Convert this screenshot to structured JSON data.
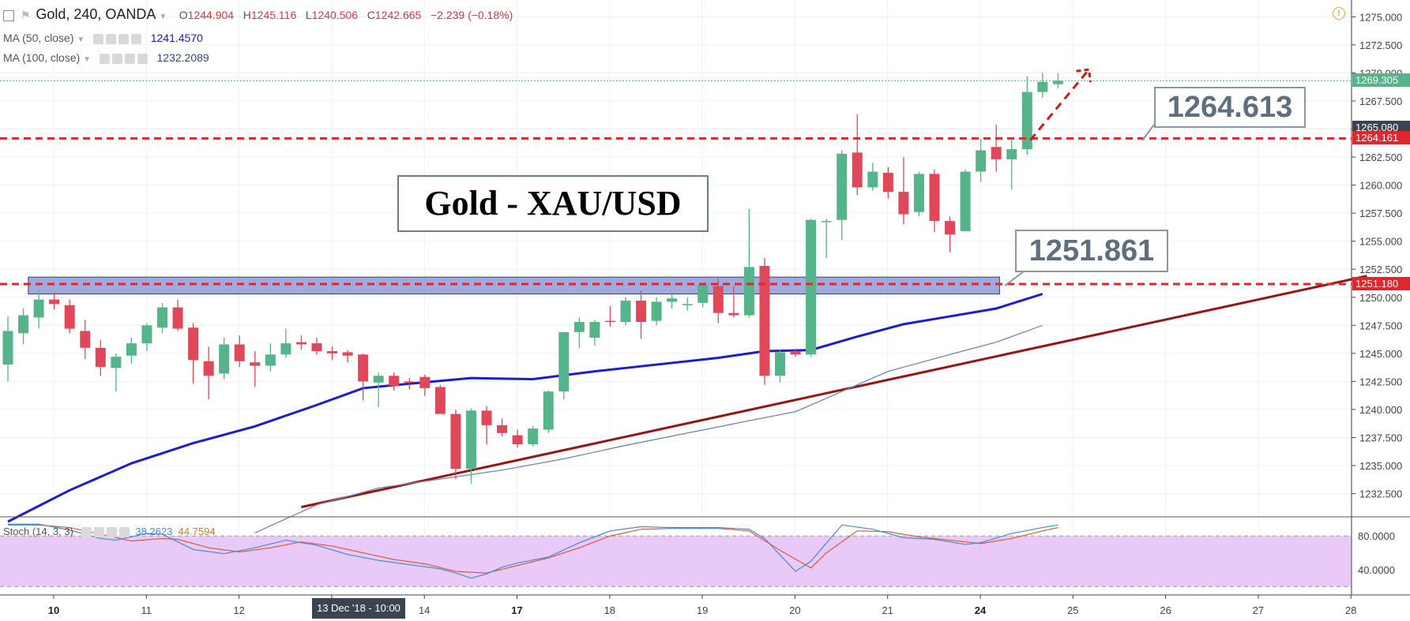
{
  "header": {
    "symbol": "Gold, 240, OANDA",
    "open_label": "O",
    "open": "1244.904",
    "high_label": "H",
    "high": "1245.116",
    "low_label": "L",
    "low": "1240.506",
    "close_label": "C",
    "close": "1242.665",
    "change": "−2.239 (−0.18%)"
  },
  "indicators": {
    "ma50_label": "MA (50, close)",
    "ma50_value": "1241.4570",
    "ma100_label": "MA (100, close)",
    "ma100_value": "1232.2089",
    "stoch_label": "Stoch (14, 3, 3)",
    "stoch_k": "38.2623",
    "stoch_d": "44.7594"
  },
  "annotations": {
    "title": "Gold - XAU/USD",
    "callout_upper": "1264.613",
    "callout_lower": "1251.861"
  },
  "price_tags": {
    "current": "1269.305",
    "cursor": "1265.080",
    "resistance": "1264.161",
    "support": "1251.180"
  },
  "time_tag": "13 Dec '18 - 10:00",
  "colors": {
    "up": "#55b489",
    "down": "#e0485a",
    "ma50": "#1c1cd4",
    "ma100": "#6f86b3",
    "trendline": "#9b1414",
    "level": "#e0262e",
    "zone": "#6e7cc9",
    "stoch_k": "#3d8fd6",
    "stoch_d": "#e05a3a",
    "stoch_band": "#e8c9f7"
  },
  "chart_data": {
    "type": "candlestick",
    "symbol": "Gold",
    "timeframe": "240",
    "y_ticks": [
      1232.5,
      1235,
      1237.5,
      1240,
      1242.5,
      1245,
      1247.5,
      1250,
      1252.5,
      1255,
      1257.5,
      1260,
      1262.5,
      1265,
      1267.5,
      1270,
      1272.5,
      1275
    ],
    "y_tick_labels": [
      "1232.500",
      "1235.000",
      "1237.500",
      "1240.000",
      "1242.500",
      "1245.000",
      "1247.500",
      "1250.000",
      "1252.500",
      "1255.000",
      "1257.500",
      "1260.000",
      "1262.500",
      "1265.000",
      "1267.500",
      "1270.000",
      "1272.500",
      "1275.000"
    ],
    "ylim": [
      1230.5,
      1276.5
    ],
    "x_day_labels": [
      {
        "label": "10",
        "bold": true,
        "bar": 3
      },
      {
        "label": "11",
        "bold": false,
        "bar": 9
      },
      {
        "label": "12",
        "bold": false,
        "bar": 15
      },
      {
        "label": "13",
        "bold": false,
        "bar": 21
      },
      {
        "label": "14",
        "bold": false,
        "bar": 27
      },
      {
        "label": "17",
        "bold": true,
        "bar": 33
      },
      {
        "label": "18",
        "bold": false,
        "bar": 39
      },
      {
        "label": "19",
        "bold": false,
        "bar": 45
      },
      {
        "label": "20",
        "bold": false,
        "bar": 51
      },
      {
        "label": "21",
        "bold": false,
        "bar": 57
      },
      {
        "label": "24",
        "bold": true,
        "bar": 63
      },
      {
        "label": "25",
        "bold": false,
        "bar": 69
      },
      {
        "label": "26",
        "bold": false,
        "bar": 75
      },
      {
        "label": "27",
        "bold": false,
        "bar": 81
      },
      {
        "label": "28",
        "bold": false,
        "bar": 87
      }
    ],
    "candles": [
      {
        "o": 1244.0,
        "h": 1248.3,
        "l": 1242.5,
        "c": 1247.0
      },
      {
        "o": 1246.8,
        "h": 1249.0,
        "l": 1245.8,
        "c": 1248.4
      },
      {
        "o": 1248.2,
        "h": 1250.6,
        "l": 1247.2,
        "c": 1249.8
      },
      {
        "o": 1249.8,
        "h": 1250.4,
        "l": 1248.9,
        "c": 1249.4
      },
      {
        "o": 1249.3,
        "h": 1249.8,
        "l": 1246.8,
        "c": 1247.2
      },
      {
        "o": 1247.0,
        "h": 1248.0,
        "l": 1244.5,
        "c": 1245.5
      },
      {
        "o": 1245.5,
        "h": 1246.2,
        "l": 1243.0,
        "c": 1243.8
      },
      {
        "o": 1243.7,
        "h": 1245.0,
        "l": 1241.6,
        "c": 1244.7
      },
      {
        "o": 1244.8,
        "h": 1246.4,
        "l": 1244.1,
        "c": 1245.9
      },
      {
        "o": 1245.9,
        "h": 1247.7,
        "l": 1245.2,
        "c": 1247.5
      },
      {
        "o": 1247.3,
        "h": 1249.5,
        "l": 1246.8,
        "c": 1249.1
      },
      {
        "o": 1249.1,
        "h": 1249.8,
        "l": 1247.0,
        "c": 1247.2
      },
      {
        "o": 1247.3,
        "h": 1247.7,
        "l": 1242.3,
        "c": 1244.4
      },
      {
        "o": 1244.3,
        "h": 1245.6,
        "l": 1240.9,
        "c": 1243.0
      },
      {
        "o": 1243.2,
        "h": 1246.4,
        "l": 1242.7,
        "c": 1245.8
      },
      {
        "o": 1245.8,
        "h": 1246.6,
        "l": 1243.8,
        "c": 1244.3
      },
      {
        "o": 1244.2,
        "h": 1245.2,
        "l": 1242.0,
        "c": 1243.9
      },
      {
        "o": 1243.9,
        "h": 1245.9,
        "l": 1243.4,
        "c": 1244.9
      },
      {
        "o": 1244.9,
        "h": 1247.2,
        "l": 1244.6,
        "c": 1245.9
      },
      {
        "o": 1246.0,
        "h": 1246.6,
        "l": 1245.3,
        "c": 1245.8
      },
      {
        "o": 1245.9,
        "h": 1246.4,
        "l": 1244.9,
        "c": 1245.2
      },
      {
        "o": 1245.2,
        "h": 1245.6,
        "l": 1244.4,
        "c": 1245.0
      },
      {
        "o": 1245.1,
        "h": 1245.3,
        "l": 1244.2,
        "c": 1244.8
      },
      {
        "o": 1244.9,
        "h": 1245.0,
        "l": 1240.8,
        "c": 1242.5
      },
      {
        "o": 1242.4,
        "h": 1243.3,
        "l": 1240.2,
        "c": 1243.0
      },
      {
        "o": 1243.0,
        "h": 1243.3,
        "l": 1241.7,
        "c": 1242.1
      },
      {
        "o": 1242.5,
        "h": 1242.8,
        "l": 1241.8,
        "c": 1242.4
      },
      {
        "o": 1242.9,
        "h": 1243.1,
        "l": 1241.2,
        "c": 1241.9
      },
      {
        "o": 1242.0,
        "h": 1242.2,
        "l": 1239.8,
        "c": 1239.6
      },
      {
        "o": 1239.6,
        "h": 1240.0,
        "l": 1233.8,
        "c": 1234.7
      },
      {
        "o": 1234.7,
        "h": 1240.1,
        "l": 1233.4,
        "c": 1239.9
      },
      {
        "o": 1239.9,
        "h": 1240.3,
        "l": 1236.9,
        "c": 1238.6
      },
      {
        "o": 1238.6,
        "h": 1239.2,
        "l": 1237.6,
        "c": 1237.9
      },
      {
        "o": 1237.7,
        "h": 1238.2,
        "l": 1236.6,
        "c": 1236.9
      },
      {
        "o": 1236.9,
        "h": 1238.5,
        "l": 1236.7,
        "c": 1238.3
      },
      {
        "o": 1238.2,
        "h": 1241.7,
        "l": 1237.9,
        "c": 1241.6
      },
      {
        "o": 1241.6,
        "h": 1246.9,
        "l": 1240.9,
        "c": 1246.9
      },
      {
        "o": 1246.9,
        "h": 1248.2,
        "l": 1245.5,
        "c": 1247.8
      },
      {
        "o": 1246.4,
        "h": 1248.0,
        "l": 1245.7,
        "c": 1247.8
      },
      {
        "o": 1247.9,
        "h": 1249.2,
        "l": 1247.4,
        "c": 1247.8
      },
      {
        "o": 1247.8,
        "h": 1250.0,
        "l": 1247.5,
        "c": 1249.7
      },
      {
        "o": 1249.7,
        "h": 1250.6,
        "l": 1246.3,
        "c": 1247.8
      },
      {
        "o": 1247.9,
        "h": 1250.0,
        "l": 1247.5,
        "c": 1249.6
      },
      {
        "o": 1249.6,
        "h": 1250.4,
        "l": 1249.0,
        "c": 1249.9
      },
      {
        "o": 1249.3,
        "h": 1250.0,
        "l": 1248.8,
        "c": 1249.4
      },
      {
        "o": 1249.5,
        "h": 1251.1,
        "l": 1249.1,
        "c": 1251.1
      },
      {
        "o": 1251.0,
        "h": 1251.7,
        "l": 1247.7,
        "c": 1248.6
      },
      {
        "o": 1248.6,
        "h": 1251.0,
        "l": 1248.2,
        "c": 1248.4
      },
      {
        "o": 1248.4,
        "h": 1257.9,
        "l": 1248.2,
        "c": 1252.7
      },
      {
        "o": 1252.8,
        "h": 1253.5,
        "l": 1242.2,
        "c": 1243.0
      },
      {
        "o": 1243.0,
        "h": 1245.3,
        "l": 1242.4,
        "c": 1245.1
      },
      {
        "o": 1245.2,
        "h": 1245.4,
        "l": 1244.7,
        "c": 1244.9
      },
      {
        "o": 1244.9,
        "h": 1257.0,
        "l": 1244.7,
        "c": 1256.9
      },
      {
        "o": 1256.8,
        "h": 1257.0,
        "l": 1253.5,
        "c": 1256.8
      },
      {
        "o": 1256.9,
        "h": 1263.1,
        "l": 1255.1,
        "c": 1262.8
      },
      {
        "o": 1262.9,
        "h": 1266.3,
        "l": 1259.1,
        "c": 1259.8
      },
      {
        "o": 1259.8,
        "h": 1262.0,
        "l": 1259.5,
        "c": 1261.2
      },
      {
        "o": 1261.1,
        "h": 1261.6,
        "l": 1258.8,
        "c": 1259.4
      },
      {
        "o": 1259.4,
        "h": 1262.5,
        "l": 1256.5,
        "c": 1257.4
      },
      {
        "o": 1257.6,
        "h": 1261.2,
        "l": 1257.2,
        "c": 1261.0
      },
      {
        "o": 1261.0,
        "h": 1261.4,
        "l": 1255.8,
        "c": 1256.8
      },
      {
        "o": 1256.8,
        "h": 1257.2,
        "l": 1254.0,
        "c": 1255.6
      },
      {
        "o": 1255.9,
        "h": 1261.4,
        "l": 1255.9,
        "c": 1261.2
      },
      {
        "o": 1261.2,
        "h": 1264.1,
        "l": 1260.3,
        "c": 1263.1
      },
      {
        "o": 1263.4,
        "h": 1265.4,
        "l": 1261.2,
        "c": 1262.3
      },
      {
        "o": 1262.3,
        "h": 1264.0,
        "l": 1259.6,
        "c": 1263.2
      },
      {
        "o": 1263.2,
        "h": 1269.7,
        "l": 1262.7,
        "c": 1268.3
      },
      {
        "o": 1268.3,
        "h": 1270.0,
        "l": 1267.8,
        "c": 1269.2
      },
      {
        "o": 1269.0,
        "h": 1270.0,
        "l": 1268.6,
        "c": 1269.3
      }
    ],
    "ma50": [
      [
        0,
        1230.0
      ],
      [
        4,
        1232.8
      ],
      [
        8,
        1235.2
      ],
      [
        12,
        1237.0
      ],
      [
        16,
        1238.5
      ],
      [
        20,
        1240.4
      ],
      [
        23,
        1241.9
      ],
      [
        26,
        1242.3
      ],
      [
        30,
        1242.8
      ],
      [
        34,
        1242.7
      ],
      [
        38,
        1243.4
      ],
      [
        42,
        1244.0
      ],
      [
        46,
        1244.6
      ],
      [
        49,
        1245.2
      ],
      [
        52,
        1245.3
      ],
      [
        55,
        1246.5
      ],
      [
        58,
        1247.6
      ],
      [
        61,
        1248.3
      ],
      [
        64,
        1249.0
      ],
      [
        67,
        1250.3
      ]
    ],
    "ma100": [
      [
        16,
        1229.0
      ],
      [
        20,
        1231.5
      ],
      [
        24,
        1233.0
      ],
      [
        28,
        1233.8
      ],
      [
        32,
        1234.6
      ],
      [
        36,
        1235.6
      ],
      [
        40,
        1236.8
      ],
      [
        44,
        1237.9
      ],
      [
        48,
        1239.0
      ],
      [
        51,
        1239.8
      ],
      [
        54,
        1241.6
      ],
      [
        57,
        1243.4
      ],
      [
        61,
        1244.9
      ],
      [
        64,
        1246.0
      ],
      [
        67,
        1247.5
      ]
    ],
    "trendline": [
      [
        19,
        1231.3
      ],
      [
        88,
        1251.9
      ]
    ],
    "levels": {
      "resistance": 1264.161,
      "support": 1251.18,
      "current": 1269.305
    },
    "support_zone": {
      "from_bar": 0.4,
      "to_bar": 63.5,
      "low": 1250.3,
      "high": 1251.8
    },
    "forecast_arrow": [
      [
        66.2,
        1264.0
      ],
      [
        70.0,
        1270.3
      ]
    ],
    "stochastic": {
      "ylim": [
        10,
        98
      ],
      "ticks": [
        40,
        80
      ],
      "tick_labels": [
        "40.0000",
        "80.0000"
      ],
      "band": [
        20,
        80
      ],
      "k": [
        [
          0,
          94
        ],
        [
          2,
          94
        ],
        [
          4,
          87
        ],
        [
          6,
          77
        ],
        [
          7,
          75
        ],
        [
          9,
          83
        ],
        [
          10,
          82
        ],
        [
          12,
          64
        ],
        [
          14,
          59
        ],
        [
          16,
          66
        ],
        [
          18,
          75
        ],
        [
          20,
          69
        ],
        [
          22,
          58
        ],
        [
          24,
          51
        ],
        [
          26,
          46
        ],
        [
          28,
          41
        ],
        [
          29,
          36
        ],
        [
          30,
          30
        ],
        [
          31,
          35
        ],
        [
          32,
          43
        ],
        [
          33,
          48
        ],
        [
          35,
          55
        ],
        [
          37,
          72
        ],
        [
          39,
          86
        ],
        [
          41,
          91
        ],
        [
          43,
          90
        ],
        [
          46,
          90
        ],
        [
          48,
          88
        ],
        [
          49,
          77
        ],
        [
          51,
          38
        ],
        [
          52,
          50
        ],
        [
          54,
          93
        ],
        [
          56,
          88
        ],
        [
          58,
          78
        ],
        [
          60,
          76
        ],
        [
          62,
          70
        ],
        [
          63,
          72
        ],
        [
          65,
          83
        ],
        [
          67,
          90
        ],
        [
          68,
          93
        ]
      ],
      "d": [
        [
          0,
          93
        ],
        [
          2,
          93
        ],
        [
          4,
          90
        ],
        [
          6,
          82
        ],
        [
          8,
          74
        ],
        [
          10,
          77
        ],
        [
          11,
          76
        ],
        [
          13,
          66
        ],
        [
          15,
          61
        ],
        [
          17,
          66
        ],
        [
          19,
          73
        ],
        [
          21,
          68
        ],
        [
          23,
          60
        ],
        [
          25,
          52
        ],
        [
          27,
          47
        ],
        [
          29,
          38
        ],
        [
          31,
          36
        ],
        [
          33,
          45
        ],
        [
          35,
          54
        ],
        [
          37,
          66
        ],
        [
          39,
          80
        ],
        [
          41,
          88
        ],
        [
          43,
          89
        ],
        [
          46,
          89
        ],
        [
          48,
          86
        ],
        [
          50,
          63
        ],
        [
          52,
          42
        ],
        [
          53,
          60
        ],
        [
          55,
          86
        ],
        [
          57,
          85
        ],
        [
          59,
          79
        ],
        [
          61,
          75
        ],
        [
          63,
          71
        ],
        [
          65,
          77
        ],
        [
          67,
          86
        ],
        [
          68,
          90
        ]
      ]
    }
  }
}
